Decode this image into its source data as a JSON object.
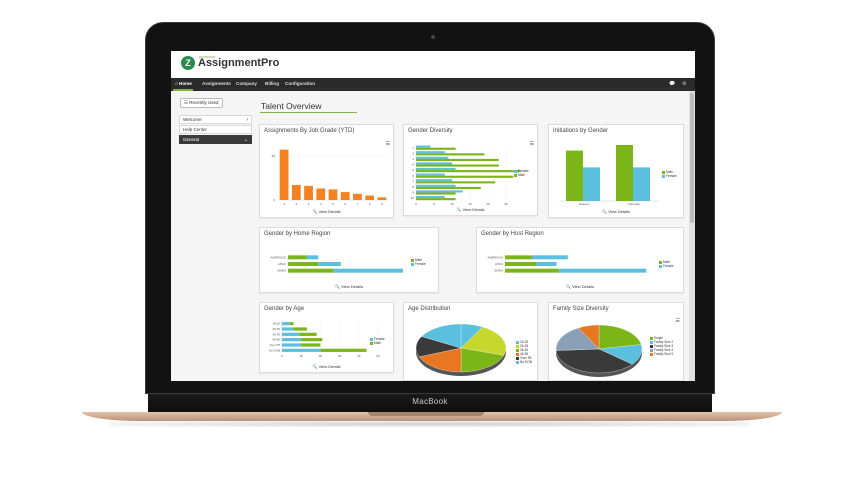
{
  "colors": {
    "orange": "#f58220",
    "green": "#7cb518",
    "blue": "#5bc0de",
    "accent": "#7cb342",
    "nav": "#2b2b2b"
  },
  "device": {
    "label": "MacBook"
  },
  "app": {
    "logo_small": "proactive",
    "logo_text": "AssignmentPro"
  },
  "nav": {
    "items": [
      "⌂ Home",
      "Assignments",
      "Company",
      "Billing",
      "Configuration"
    ],
    "icons": [
      "chat-icon",
      "gear-icon"
    ]
  },
  "sidebar": {
    "recent_label": "☰ Recently Used",
    "items": [
      {
        "label": "Welcome",
        "chevron": "›"
      },
      {
        "label": "Help Center",
        "chevron": ""
      },
      {
        "label": "General",
        "chevron": "⌄"
      }
    ]
  },
  "page": {
    "title": "Talent Overview"
  },
  "cards": {
    "job_grade": {
      "title": "Assignments By Job Grade (YTD)",
      "footer": "🔍 View Details"
    },
    "gender_diversity": {
      "title": "Gender Diversity",
      "footer": "🔍 View Details"
    },
    "initiations": {
      "title": "Initiations by Gender",
      "footer": "🔍 View Details"
    },
    "home_region": {
      "title": "Gender by Home Region",
      "footer": "🔍 View Details"
    },
    "host_region": {
      "title": "Gender by Host Region",
      "footer": "🔍 View Details"
    },
    "age": {
      "title": "Gender by Age",
      "footer": "🔍 View Details"
    },
    "age_distribution": {
      "title": "Age Distribution"
    },
    "family_size": {
      "title": "Family Size Diversity"
    }
  },
  "chart_data": [
    {
      "id": "job_grade",
      "type": "bar",
      "categories": [
        "1",
        "2",
        "3",
        "4",
        "5",
        "6",
        "7",
        "8",
        "9"
      ],
      "values": [
        57,
        17,
        16,
        13,
        12,
        9,
        7,
        5,
        3
      ],
      "ylim": [
        0,
        60
      ],
      "yticks": [
        "50",
        "0"
      ],
      "xlabel": "",
      "ylabel": ""
    },
    {
      "id": "gender_diversity",
      "type": "bar",
      "orientation": "horizontal",
      "categories": [
        "1",
        "2",
        "3",
        "4",
        "5",
        "6",
        "7",
        "8",
        "9",
        "10"
      ],
      "series": [
        {
          "name": "Female",
          "values": [
            4,
            8,
            9,
            10,
            11,
            8,
            10,
            11,
            13,
            8
          ]
        },
        {
          "name": "Male",
          "values": [
            11,
            19,
            23,
            23,
            29,
            27,
            22,
            18,
            11,
            11
          ]
        }
      ],
      "xlim": [
        0,
        30
      ],
      "xticks": [
        "0",
        "5",
        "10",
        "15",
        "20",
        "25"
      ],
      "legend": "right"
    },
    {
      "id": "initiations",
      "type": "bar",
      "categories": [
        "January",
        "February"
      ],
      "series": [
        {
          "name": "Male",
          "values": [
            9,
            10
          ]
        },
        {
          "name": "Female",
          "values": [
            6,
            6
          ]
        }
      ],
      "ylim": [
        0,
        10
      ],
      "legend": "right"
    },
    {
      "id": "home_region",
      "type": "bar",
      "orientation": "horizontal",
      "stacked": true,
      "categories": [
        "AMERICAS",
        "APAC",
        "EMEA"
      ],
      "series": [
        {
          "name": "Male",
          "values": [
            10,
            16,
            24
          ]
        },
        {
          "name": "Female",
          "values": [
            6,
            12,
            37
          ]
        }
      ],
      "xlim": [
        0,
        70
      ],
      "legend": "right"
    },
    {
      "id": "host_region",
      "type": "bar",
      "orientation": "horizontal",
      "stacked": true,
      "categories": [
        "AMERICAS",
        "APAC",
        "EMEA"
      ],
      "series": [
        {
          "name": "Male",
          "values": [
            12,
            14,
            24
          ]
        },
        {
          "name": "Female",
          "values": [
            16,
            9,
            39
          ]
        }
      ],
      "xlim": [
        0,
        70
      ],
      "legend": "right"
    },
    {
      "id": "age",
      "type": "bar",
      "orientation": "horizontal",
      "stacked": true,
      "categories": [
        "18-25",
        "26-35",
        "36-45",
        "46-55",
        "Over 55",
        "No DOB"
      ],
      "series": [
        {
          "name": "Female",
          "values": [
            4,
            6,
            9,
            10,
            10,
            20
          ]
        },
        {
          "name": "Male",
          "values": [
            2,
            7,
            9,
            11,
            10,
            24
          ]
        }
      ],
      "xlim": [
        0,
        50
      ],
      "xticks": [
        "0",
        "10",
        "20",
        "30",
        "40",
        "50"
      ],
      "legend": "right"
    },
    {
      "id": "age_distribution",
      "type": "pie",
      "labels": [
        "18-25",
        "26-35",
        "36-45",
        "46-55",
        "Over 55",
        "No DOB"
      ],
      "values": [
        8,
        22,
        20,
        19,
        14,
        17
      ],
      "colors": [
        "#5bc0de",
        "#c6d82e",
        "#7cb518",
        "#e87722",
        "#3a3a3a",
        "#5bc0de"
      ],
      "legend": "right"
    },
    {
      "id": "family_size",
      "type": "pie",
      "labels": [
        "Single",
        "Family Size 2",
        "Family Size 3",
        "Family Size 4",
        "Family Size 5"
      ],
      "values": [
        22,
        14,
        38,
        18,
        8
      ],
      "colors": [
        "#7cb518",
        "#5bc0de",
        "#3a3a3a",
        "#8a9fb8",
        "#e87722"
      ],
      "legend": "right"
    }
  ]
}
